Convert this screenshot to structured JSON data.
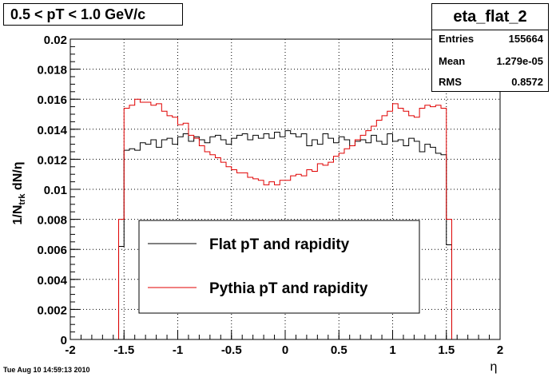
{
  "title": "0.5 < pT < 1.0 GeV/c",
  "stats": {
    "name": "eta_flat_2",
    "rows": [
      {
        "key": "Entries",
        "value": "155664"
      },
      {
        "key": "Mean",
        "value": "1.279e-05"
      },
      {
        "key": "RMS",
        "value": "0.8572"
      }
    ]
  },
  "footer": "Tue Aug 10 14:59:13 2010",
  "colors": {
    "flat": "#000000",
    "pythia": "#e00000"
  },
  "chart_data": {
    "type": "line",
    "title": "0.5 < pT < 1.0 GeV/c",
    "xlabel": "η",
    "ylabel": "1/N_trk dN/η",
    "xlim": [
      -2,
      2
    ],
    "ylim": [
      0,
      0.02
    ],
    "grid": true,
    "legend_position": "bottom-center",
    "x_ticks": [
      "-2",
      "-1.5",
      "-1",
      "-0.5",
      "0",
      "0.5",
      "1",
      "1.5",
      "2"
    ],
    "y_ticks": [
      "0",
      "0.002",
      "0.004",
      "0.006",
      "0.008",
      "0.01",
      "0.012",
      "0.014",
      "0.016",
      "0.018",
      "0.02"
    ],
    "bin_edges_start": -1.55,
    "bin_width": 0.05,
    "series": [
      {
        "name": "Flat pT and rapidity",
        "color": "#000000",
        "values": [
          0.0062,
          0.0126,
          0.0127,
          0.0126,
          0.0131,
          0.013,
          0.0133,
          0.0128,
          0.0133,
          0.0134,
          0.013,
          0.0135,
          0.0137,
          0.0132,
          0.0135,
          0.0133,
          0.0131,
          0.0135,
          0.0136,
          0.0133,
          0.013,
          0.0134,
          0.0136,
          0.0137,
          0.0133,
          0.0136,
          0.0134,
          0.0137,
          0.0134,
          0.0138,
          0.0135,
          0.0139,
          0.0137,
          0.0135,
          0.0137,
          0.0129,
          0.0133,
          0.013,
          0.0137,
          0.0134,
          0.0131,
          0.0135,
          0.0133,
          0.0129,
          0.0132,
          0.0133,
          0.0131,
          0.0136,
          0.0132,
          0.013,
          0.0137,
          0.0132,
          0.0133,
          0.0129,
          0.0134,
          0.0132,
          0.0125,
          0.013,
          0.0128,
          0.0124,
          0.0123,
          0.0063
        ]
      },
      {
        "name": "Pythia pT and rapidity",
        "color": "#e00000",
        "values": [
          0.008,
          0.0154,
          0.0156,
          0.016,
          0.0158,
          0.0158,
          0.0156,
          0.0157,
          0.0152,
          0.0149,
          0.0148,
          0.0143,
          0.0144,
          0.0136,
          0.0134,
          0.0129,
          0.0125,
          0.0123,
          0.0121,
          0.0118,
          0.0115,
          0.0113,
          0.0111,
          0.0111,
          0.0108,
          0.0107,
          0.0106,
          0.0103,
          0.0105,
          0.0103,
          0.0106,
          0.0106,
          0.0109,
          0.011,
          0.0109,
          0.0113,
          0.0112,
          0.0117,
          0.0116,
          0.0118,
          0.0122,
          0.0124,
          0.0127,
          0.0129,
          0.0133,
          0.0136,
          0.0139,
          0.0142,
          0.0146,
          0.0149,
          0.0152,
          0.0157,
          0.0154,
          0.0152,
          0.0149,
          0.0148,
          0.0154,
          0.0156,
          0.0155,
          0.0156,
          0.0154,
          0.008
        ]
      }
    ]
  }
}
